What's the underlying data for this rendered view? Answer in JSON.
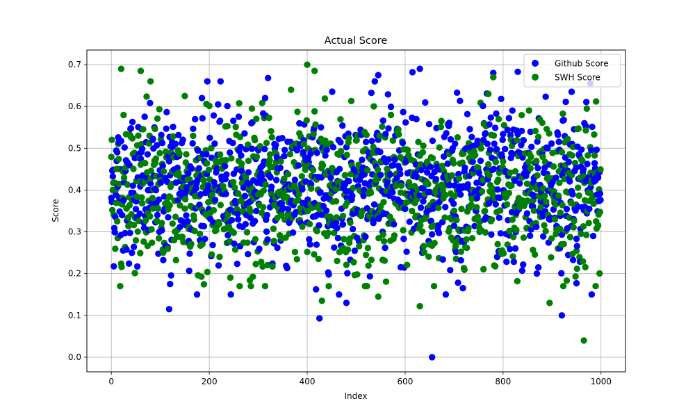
{
  "chart_data": {
    "type": "scatter",
    "title": "Actual Score",
    "xlabel": "Index",
    "ylabel": "Score",
    "xlim": [
      -50,
      1050
    ],
    "ylim": [
      -0.035,
      0.735
    ],
    "xticks": [
      0,
      200,
      400,
      600,
      800,
      1000
    ],
    "yticks": [
      0.0,
      0.1,
      0.2,
      0.3,
      0.4,
      0.5,
      0.6,
      0.7
    ],
    "xtick_labels": [
      "0",
      "200",
      "400",
      "600",
      "800",
      "1000"
    ],
    "ytick_labels": [
      "0.0",
      "0.1",
      "0.2",
      "0.3",
      "0.4",
      "0.5",
      "0.6",
      "0.7"
    ],
    "grid": true,
    "legend_position": "upper right",
    "point_count": 1000,
    "series": [
      {
        "name": "Github Score",
        "color": "#0000ff",
        "n": 1000,
        "mean": 0.41,
        "std": 0.11,
        "notable_points": [
          {
            "x": 118,
            "y": 0.115
          },
          {
            "x": 425,
            "y": 0.093
          },
          {
            "x": 655,
            "y": 0.0
          },
          {
            "x": 920,
            "y": 0.1
          },
          {
            "x": 320,
            "y": 0.668
          },
          {
            "x": 630,
            "y": 0.69
          },
          {
            "x": 615,
            "y": 0.682
          },
          {
            "x": 780,
            "y": 0.68
          },
          {
            "x": 830,
            "y": 0.683
          },
          {
            "x": 940,
            "y": 0.635
          },
          {
            "x": 545,
            "y": 0.675
          },
          {
            "x": 480,
            "y": 0.13
          },
          {
            "x": 120,
            "y": 0.175
          },
          {
            "x": 950,
            "y": 0.177
          }
        ]
      },
      {
        "name": "SWH Score",
        "color": "#008000",
        "n": 1000,
        "mean": 0.39,
        "std": 0.11,
        "notable_points": [
          {
            "x": 20,
            "y": 0.69
          },
          {
            "x": 60,
            "y": 0.685
          },
          {
            "x": 400,
            "y": 0.7
          },
          {
            "x": 415,
            "y": 0.685
          },
          {
            "x": 80,
            "y": 0.66
          },
          {
            "x": 965,
            "y": 0.04
          },
          {
            "x": 630,
            "y": 0.122
          },
          {
            "x": 895,
            "y": 0.13
          },
          {
            "x": 545,
            "y": 0.145
          },
          {
            "x": 430,
            "y": 0.135
          },
          {
            "x": 150,
            "y": 0.625
          },
          {
            "x": 770,
            "y": 0.63
          },
          {
            "x": 780,
            "y": 0.67
          },
          {
            "x": 990,
            "y": 0.612
          }
        ]
      }
    ]
  }
}
